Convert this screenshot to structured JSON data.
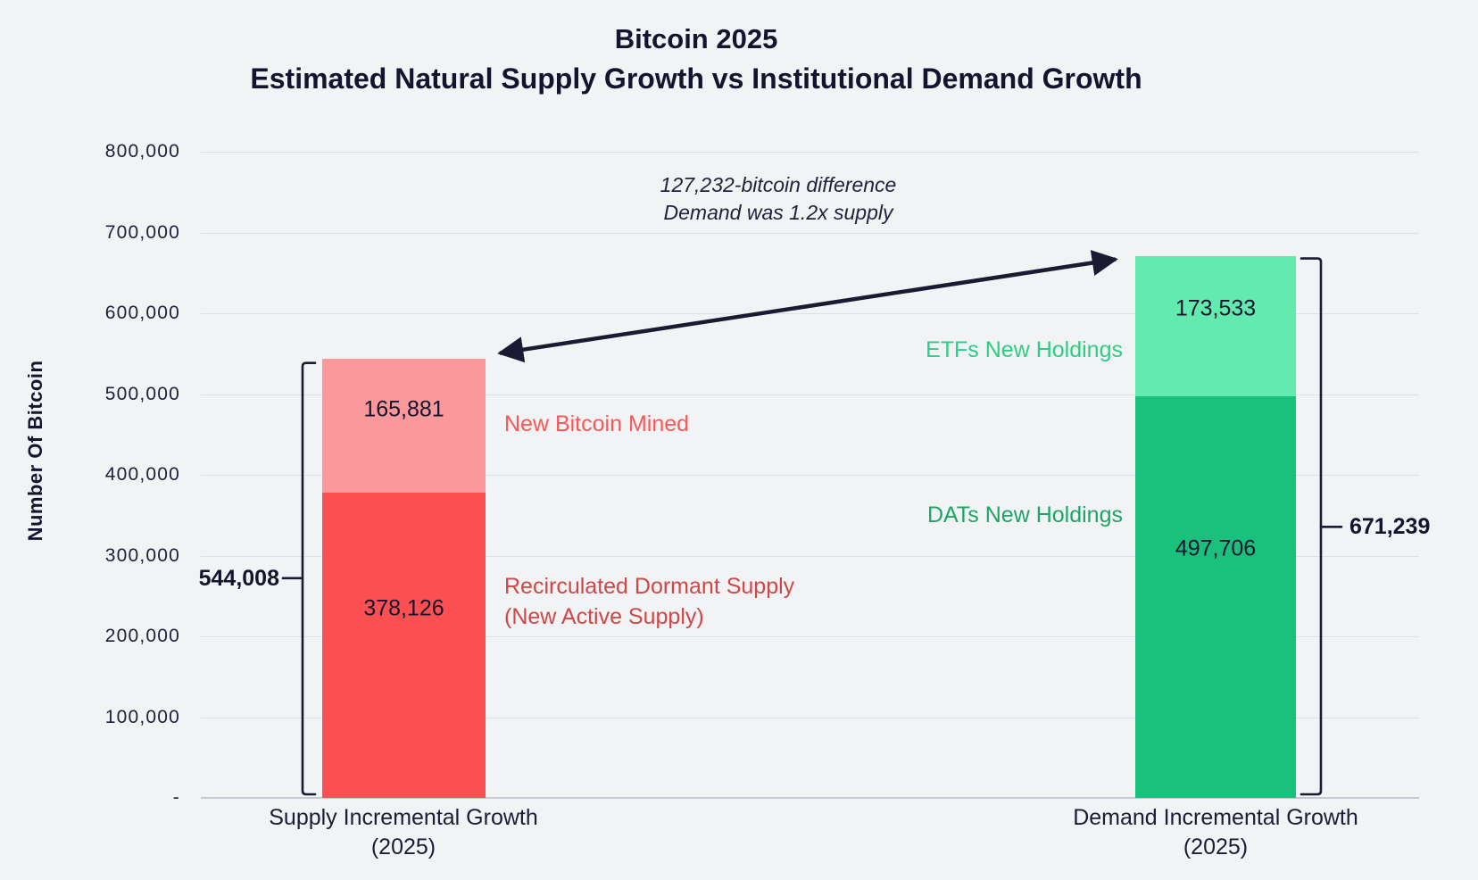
{
  "title": {
    "line1": "Bitcoin 2025",
    "line2": "Estimated Natural Supply Growth vs Institutional Demand Growth"
  },
  "chart_data": {
    "type": "bar",
    "stacked": true,
    "title": "Bitcoin 2025 — Estimated Natural Supply Growth vs Institutional Demand Growth",
    "ylabel": "Number Of Bitcoin",
    "xlabel": "",
    "ylim": [
      0,
      800000
    ],
    "ytick_step": 100000,
    "ytick_labels": [
      "800,000",
      "700,000",
      "600,000",
      "500,000",
      "400,000",
      "300,000",
      "200,000",
      "100,000",
      "-"
    ],
    "grid": "horizontal gridlines every 100,000",
    "legend_position": "none (direct colored labels beside bars)",
    "categories": [
      "Supply Incremental Growth (2025)",
      "Demand Incremental Growth (2025)"
    ],
    "bars": [
      {
        "name": "supply",
        "category_line1": "Supply Incremental Growth",
        "category_line2": "(2025)",
        "total": 544008,
        "total_label": "544,008",
        "segments": [
          {
            "name": "recirculated-dormant-supply",
            "value": 378126,
            "label": "378,126",
            "color": "#FC4F52"
          },
          {
            "name": "new-bitcoin-mined",
            "value": 165881,
            "label": "165,881",
            "color": "#FA989B"
          }
        ]
      },
      {
        "name": "demand",
        "category_line1": "Demand Incremental Growth",
        "category_line2": "(2025)",
        "total": 671239,
        "total_label": "671,239",
        "segments": [
          {
            "name": "dats-new-holdings",
            "value": 497706,
            "label": "497,706",
            "color": "#19C17D"
          },
          {
            "name": "etfs-new-holdings",
            "value": 173533,
            "label": "173,533",
            "color": "#63EAAE"
          }
        ]
      }
    ],
    "side_labels": {
      "mined": {
        "text": "New Bitcoin Mined",
        "color": "#FB5757"
      },
      "recirculated": {
        "text": "Recirculated Dormant Supply",
        "text2": "(New Active Supply)",
        "color": "#CF4747"
      },
      "etf": {
        "text": "ETFs New Holdings",
        "color": "#2BCE85"
      },
      "dat": {
        "text": "DATs New Holdings",
        "color": "#1FA468"
      }
    },
    "annotation": {
      "line1": "127,232-bitcoin difference",
      "line2": "Demand was 1.2x supply"
    },
    "colors": {
      "background": "#F2F3F5",
      "text_dark": "#14142E",
      "gridline": "#DFE1E9",
      "axis_line": "#C6C8D2",
      "supply_main": "#FC4F52",
      "supply_light": "#FA989B",
      "demand_main": "#19C17D",
      "demand_light": "#63EAAE",
      "arrow": "#1A1A32"
    }
  }
}
